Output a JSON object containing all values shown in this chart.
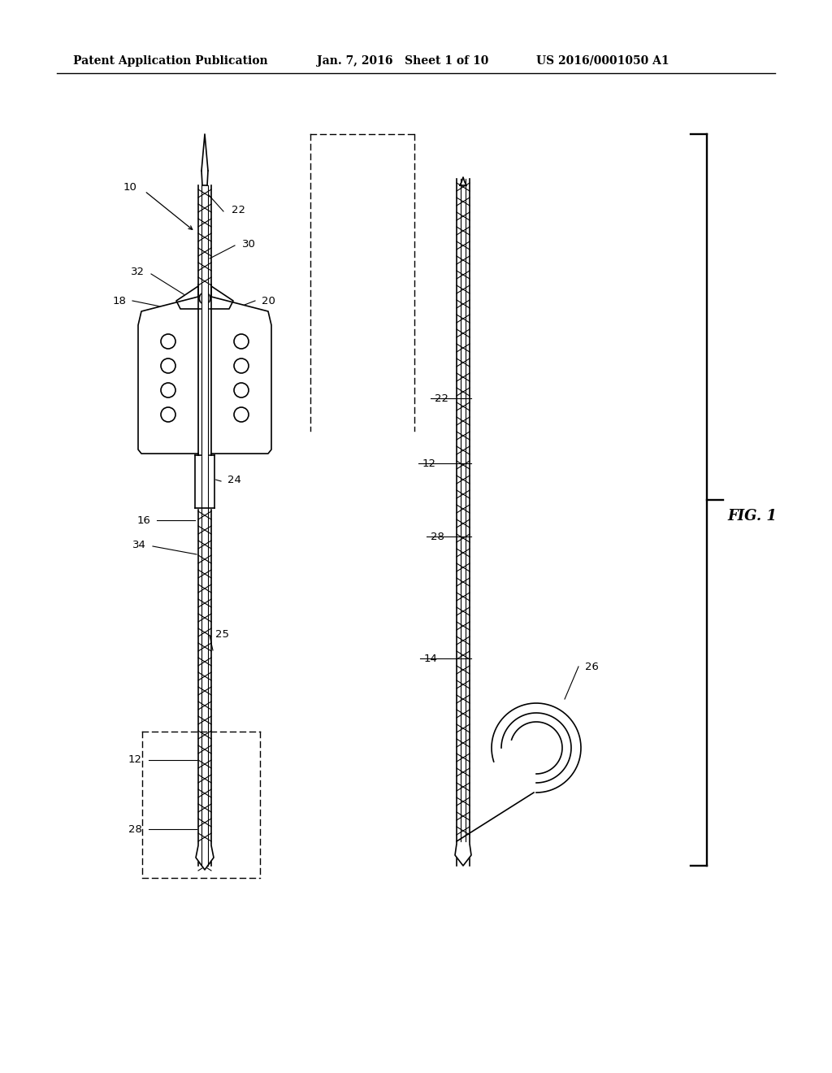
{
  "bg_color": "#ffffff",
  "header_left": "Patent Application Publication",
  "header_mid": "Jan. 7, 2016   Sheet 1 of 10",
  "header_right": "US 2016/0001050 A1",
  "fig_label": "FIG. 1",
  "header_fontsize": 10,
  "fig_label_fontsize": 13
}
